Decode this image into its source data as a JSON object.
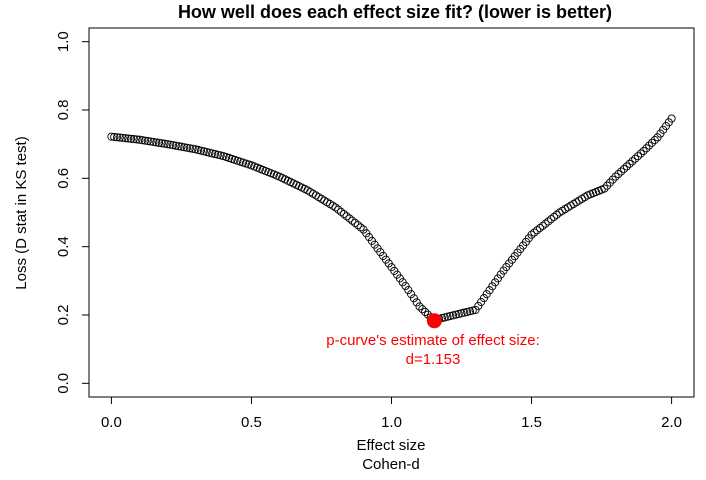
{
  "chart_data": {
    "type": "scatter",
    "title": "How well does each effect size fit? (lower is better)",
    "xlabel": "Effect size",
    "xlabel2": "Cohen-d",
    "ylabel": "Loss (D stat in KS test)",
    "xlim": [
      -0.08,
      2.08
    ],
    "ylim": [
      -0.04,
      1.04
    ],
    "xticks": [
      0.0,
      0.5,
      1.0,
      1.5,
      2.0
    ],
    "xtick_labels": [
      "0.0",
      "0.5",
      "1.0",
      "1.5",
      "2.0"
    ],
    "yticks": [
      0.0,
      0.2,
      0.4,
      0.6,
      0.8,
      1.0
    ],
    "ytick_labels": [
      "0.0",
      "0.2",
      "0.4",
      "0.6",
      "0.8",
      "1.0"
    ],
    "grid": false,
    "curve_keypoints": {
      "x": [
        0.0,
        0.1,
        0.2,
        0.3,
        0.4,
        0.5,
        0.6,
        0.7,
        0.8,
        0.9,
        1.0,
        1.05,
        1.1,
        1.15,
        1.2,
        1.3,
        1.4,
        1.5,
        1.6,
        1.7,
        1.76,
        1.8,
        1.9,
        1.95,
        2.0
      ],
      "y": [
        0.722,
        0.713,
        0.7,
        0.685,
        0.665,
        0.638,
        0.605,
        0.565,
        0.515,
        0.45,
        0.34,
        0.285,
        0.225,
        0.185,
        0.195,
        0.215,
        0.33,
        0.435,
        0.5,
        0.55,
        0.57,
        0.605,
        0.68,
        0.72,
        0.775
      ]
    },
    "points_step": 0.01,
    "highlight": {
      "x": 1.153,
      "y": 0.183,
      "color": "#ff0000"
    },
    "annotation": {
      "line1": "p-curve's estimate of effect size:",
      "line2": "d=1.153",
      "color": "#ff0000"
    },
    "point_color": "#000000"
  }
}
